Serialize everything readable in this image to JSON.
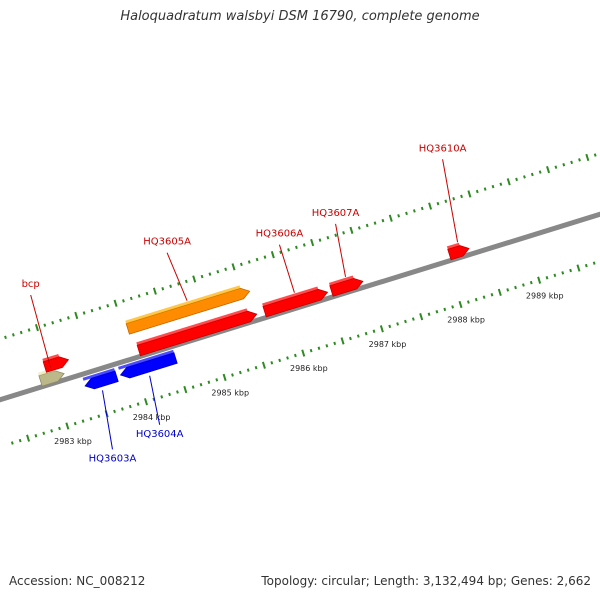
{
  "title": "Haloquadratum walsbyi DSM 16790, complete genome",
  "footer": {
    "accession": "Accession: NC_008212",
    "summary": "Topology: circular; Length: 3,132,494 bp; Genes: 2,662"
  },
  "genome_map": {
    "kbp_marks": [
      {
        "kbp": 2983,
        "label": "2983 kbp"
      },
      {
        "kbp": 2984,
        "label": "2984 kbp"
      },
      {
        "kbp": 2985,
        "label": "2985 kbp"
      },
      {
        "kbp": 2986,
        "label": "2986 kbp"
      },
      {
        "kbp": 2987,
        "label": "2987 kbp"
      },
      {
        "kbp": 2988,
        "label": "2988 kbp"
      },
      {
        "kbp": 2989,
        "label": "2989 kbp"
      }
    ],
    "features": [
      {
        "name": "bcp",
        "strand": "+",
        "start_kbp": 2982.85,
        "end_kbp": 2983.15,
        "color": "#bdb88a"
      },
      {
        "name": "",
        "strand": "+",
        "start_kbp": 2982.95,
        "end_kbp": 2983.25,
        "color": "#ff0000"
      },
      {
        "name": "HQ3603A",
        "strand": "-",
        "start_kbp": 2983.35,
        "end_kbp": 2983.75,
        "color": "#0000ff"
      },
      {
        "name": "HQ3604A",
        "strand": "-",
        "start_kbp": 2983.8,
        "end_kbp": 2984.5,
        "color": "#0000ff"
      },
      {
        "name": "HQ3605A",
        "strand": "+",
        "start_kbp": 2984.05,
        "end_kbp": 2985.6,
        "color": "#ff8c00"
      },
      {
        "name": "",
        "strand": "+",
        "start_kbp": 2984.1,
        "end_kbp": 2985.6,
        "color": "#ff0000"
      },
      {
        "name": "HQ3606A",
        "strand": "+",
        "start_kbp": 2985.7,
        "end_kbp": 2986.5,
        "color": "#ff0000"
      },
      {
        "name": "HQ3607A",
        "strand": "+",
        "start_kbp": 2986.55,
        "end_kbp": 2986.95,
        "color": "#ff0000"
      },
      {
        "name": "HQ3610A",
        "strand": "+",
        "start_kbp": 2988.05,
        "end_kbp": 2988.3,
        "color": "#ff0000"
      }
    ],
    "label_colors": {
      "forward": "#cc0000",
      "reverse": "#0000cc"
    },
    "backbone_color": "#888888",
    "tick_color": "#2e8b22"
  }
}
